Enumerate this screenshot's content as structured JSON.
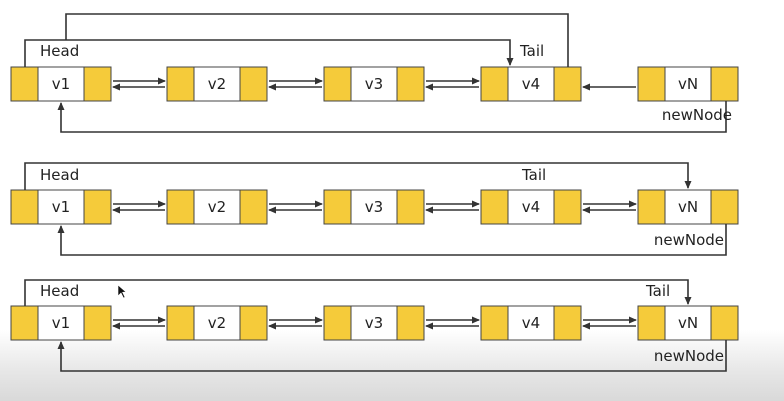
{
  "colors": {
    "node_slot": "#f5cb3a",
    "node_border": "#444444",
    "node_value_bg": "#ffffff",
    "arrow": "#333333",
    "text": "#222222"
  },
  "icons": {
    "cursor": "mouse-pointer-icon"
  },
  "rows": [
    {
      "nodes": [
        {
          "value": "v1"
        },
        {
          "value": "v2"
        },
        {
          "value": "v3"
        },
        {
          "value": "v4"
        },
        {
          "value": "vN"
        }
      ],
      "head_label": "Head",
      "tail_label": "Tail",
      "new_node_label": "newNode"
    },
    {
      "nodes": [
        {
          "value": "v1"
        },
        {
          "value": "v2"
        },
        {
          "value": "v3"
        },
        {
          "value": "v4"
        },
        {
          "value": "vN"
        }
      ],
      "head_label": "Head",
      "tail_label": "Tail",
      "new_node_label": "newNode"
    },
    {
      "nodes": [
        {
          "value": "v1"
        },
        {
          "value": "v2"
        },
        {
          "value": "v3"
        },
        {
          "value": "v4"
        },
        {
          "value": "vN"
        }
      ],
      "head_label": "Head",
      "tail_label": "Tail",
      "new_node_label": "newNode"
    }
  ]
}
